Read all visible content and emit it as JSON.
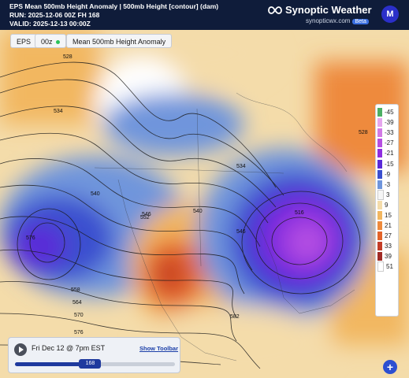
{
  "header": {
    "line1": "EPS Mean 500mb Height Anomaly | 500mb Height [contour] (dam)",
    "line2": "RUN: 2025-12-06 00Z FH 168",
    "line3": "VALID: 2025-12-13 00:00Z",
    "brand": "Synoptic Weather",
    "site": "synopticwx.com",
    "badge": "Beta",
    "avatar": "M"
  },
  "controls": {
    "model": "EPS",
    "run": "00z",
    "product": "Mean 500mb Height Anomaly"
  },
  "legend": [
    {
      "label": "-45",
      "color": "#4caf64"
    },
    {
      "label": "-39",
      "color": "#e6a6ee"
    },
    {
      "label": "-33",
      "color": "#d27ae6"
    },
    {
      "label": "-27",
      "color": "#b54fe2"
    },
    {
      "label": "-21",
      "color": "#8e2ee0"
    },
    {
      "label": "-15",
      "color": "#5a2ad8"
    },
    {
      "label": "-9",
      "color": "#3b4fcf"
    },
    {
      "label": "-3",
      "color": "#6f95dc"
    },
    {
      "label": "3",
      "color": "#f6f6f6"
    },
    {
      "label": "9",
      "color": "#f4dcaa"
    },
    {
      "label": "15",
      "color": "#f2b760"
    },
    {
      "label": "21",
      "color": "#ee8a3c"
    },
    {
      "label": "27",
      "color": "#e3642a"
    },
    {
      "label": "33",
      "color": "#c33d27"
    },
    {
      "label": "39",
      "color": "#a02b26"
    },
    {
      "label": "51",
      "color": "#ffffff"
    }
  ],
  "contour_labels": [
    "528",
    "534",
    "540",
    "546",
    "552",
    "558",
    "564",
    "570",
    "576",
    "582",
    "540",
    "546",
    "534",
    "528",
    "516",
    "576"
  ],
  "player": {
    "date": "Fri Dec 12 @ 7pm EST",
    "toolbar_link": "Show Toolbar",
    "hour": "168",
    "progress_fraction": 0.47
  }
}
